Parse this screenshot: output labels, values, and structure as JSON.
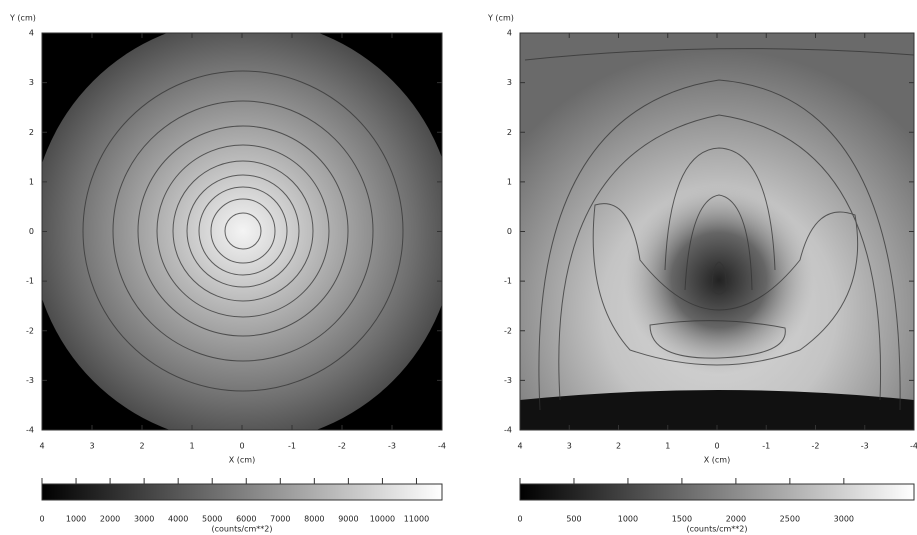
{
  "chart_data": [
    {
      "type": "heatmap",
      "x_label": "X (cm)",
      "y_label": "Y (cm)",
      "xlim": [
        4,
        -4
      ],
      "ylim": [
        -4,
        4
      ],
      "xticks": [
        4,
        3,
        2,
        1,
        0,
        -1,
        -2,
        -3,
        -4
      ],
      "yticks": [
        4,
        3,
        2,
        1,
        0,
        -1,
        -2,
        -3,
        -4
      ],
      "colorbar": {
        "label": "(counts/cm**2)",
        "lim": [
          0,
          11750
        ],
        "ticks": [
          0,
          1000,
          2000,
          3000,
          4000,
          5000,
          6000,
          7000,
          8000,
          9000,
          10000,
          11000
        ]
      }
    },
    {
      "type": "heatmap",
      "x_label": "X (cm)",
      "y_label": "Y (cm)",
      "xlim": [
        4,
        -4
      ],
      "ylim": [
        -4,
        4
      ],
      "xticks": [
        4,
        3,
        2,
        1,
        0,
        -1,
        -2,
        -3,
        -4
      ],
      "yticks": [
        4,
        3,
        2,
        1,
        0,
        -1,
        -2,
        -3,
        -4
      ],
      "colorbar": {
        "label": "(counts/cm**2)",
        "lim": [
          0,
          3650
        ],
        "ticks": [
          0,
          500,
          1000,
          1500,
          2000,
          2500,
          3000
        ]
      }
    }
  ]
}
